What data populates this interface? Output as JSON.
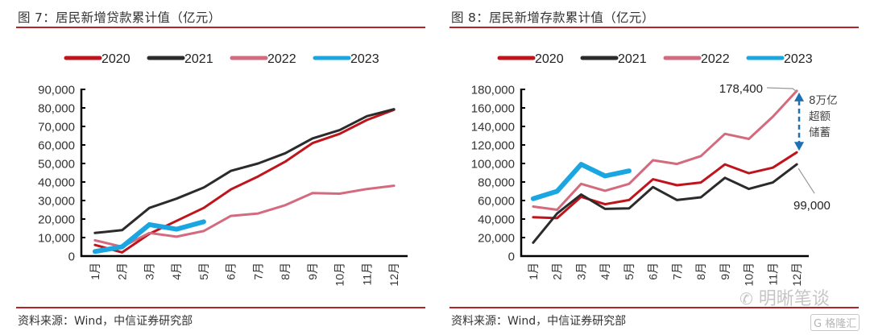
{
  "charts": [
    {
      "title": "图 7：居民新增贷款累计值（亿元）",
      "source": "资料来源：Wind，中信证券研究部"
    },
    {
      "title": "图 8：居民新增存款累计值（亿元）",
      "source": "资料来源：Wind，中信证券研究部"
    }
  ],
  "watermarks": {
    "wechat_account": "明晰笔谈",
    "logo": "格隆汇"
  },
  "chart_data": [
    {
      "type": "line",
      "title": "图 7：居民新增贷款累计值（亿元）",
      "xlabel": "",
      "ylabel": "亿元",
      "categories": [
        "1月",
        "2月",
        "3月",
        "4月",
        "5月",
        "6月",
        "7月",
        "8月",
        "9月",
        "10月",
        "11月",
        "12月"
      ],
      "ylim": [
        0,
        90000
      ],
      "yticks": [
        0,
        10000,
        20000,
        30000,
        40000,
        50000,
        60000,
        70000,
        80000,
        90000
      ],
      "ytick_labels": [
        "0",
        "10,000",
        "20,000",
        "30,000",
        "40,000",
        "50,000",
        "60,000",
        "70,000",
        "80,000",
        "90,000"
      ],
      "legend": "top",
      "grid": false,
      "series": [
        {
          "name": "2020",
          "color": "#c0141c",
          "values": [
            6000,
            2000,
            12000,
            19000,
            26000,
            36000,
            43000,
            51000,
            61000,
            66000,
            73500,
            79000
          ]
        },
        {
          "name": "2021",
          "color": "#2b2b2b",
          "values": [
            12500,
            14000,
            26000,
            31000,
            37000,
            46000,
            50000,
            55500,
            63500,
            68000,
            75500,
            79300
          ]
        },
        {
          "name": "2022",
          "color": "#d46a7e",
          "values": [
            8500,
            5000,
            12500,
            10500,
            13500,
            21700,
            23000,
            27500,
            34000,
            33700,
            36200,
            38000
          ]
        },
        {
          "name": "2023",
          "color": "#1aa7e1",
          "values": [
            2500,
            5000,
            17000,
            14500,
            18500
          ]
        }
      ],
      "annotations": []
    },
    {
      "type": "line",
      "title": "图 8：居民新增存款累计值（亿元）",
      "xlabel": "",
      "ylabel": "亿元",
      "categories": [
        "1月",
        "2月",
        "3月",
        "4月",
        "5月",
        "6月",
        "7月",
        "8月",
        "9月",
        "10月",
        "11月",
        "12月"
      ],
      "ylim": [
        0,
        180000
      ],
      "yticks": [
        0,
        20000,
        40000,
        60000,
        80000,
        100000,
        120000,
        140000,
        160000,
        180000
      ],
      "ytick_labels": [
        "0",
        "20,000",
        "40,000",
        "60,000",
        "80,000",
        "100,000",
        "120,000",
        "140,000",
        "160,000",
        "180,000"
      ],
      "legend": "top",
      "grid": false,
      "series": [
        {
          "name": "2020",
          "color": "#c0141c",
          "values": [
            42000,
            41000,
            64000,
            56000,
            60500,
            83000,
            76500,
            79500,
            99000,
            89500,
            95500,
            112000
          ]
        },
        {
          "name": "2021",
          "color": "#2b2b2b",
          "values": [
            14500,
            46000,
            66500,
            51000,
            51500,
            74500,
            60500,
            63500,
            84500,
            72500,
            79500,
            99000
          ]
        },
        {
          "name": "2022",
          "color": "#d46a7e",
          "values": [
            53500,
            50000,
            78000,
            70500,
            78000,
            103500,
            99500,
            108000,
            132000,
            126500,
            150500,
            178400
          ]
        },
        {
          "name": "2023",
          "color": "#1aa7e1",
          "values": [
            62000,
            70000,
            99000,
            86500,
            92000
          ]
        }
      ],
      "annotations": [
        {
          "text": "178,400",
          "target_series": "2022",
          "target_category": "12月"
        },
        {
          "text": "99,000",
          "target_series": "2021",
          "target_category": "12月"
        },
        {
          "text_lines": [
            "8万亿",
            "超额",
            "储蓄"
          ],
          "arrow": "double",
          "from_value": 178400,
          "to_value": 112000,
          "color": "#1f6fb5"
        }
      ]
    }
  ]
}
